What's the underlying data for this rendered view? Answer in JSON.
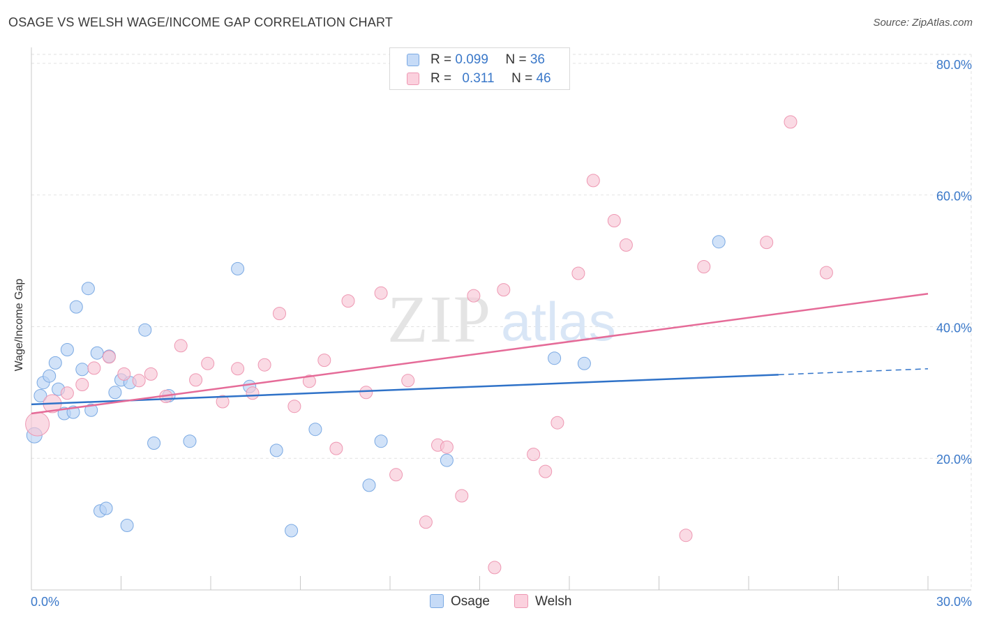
{
  "title": "OSAGE VS WELSH WAGE/INCOME GAP CORRELATION CHART",
  "source": "Source: ZipAtlas.com",
  "watermark": {
    "zip": "ZIP",
    "atlas": "atlas"
  },
  "legend_top": [
    {
      "series": "Osage",
      "r_label": "R = ",
      "r_value": "0.099",
      "n_label": "N = ",
      "n_value": "36"
    },
    {
      "series": "Welsh",
      "r_label": "R = ",
      "r_value": "0.311",
      "n_label": "N = ",
      "n_value": "46"
    }
  ],
  "colors": {
    "osage_fill": "#b8d3f5",
    "osage_stroke": "#7aa9e3",
    "osage_line": "#2f72c8",
    "welsh_fill": "#f8c6d5",
    "welsh_stroke": "#ee97b2",
    "welsh_line": "#e56b98",
    "axis_text": "#3a78c9",
    "grid": "#e2e2e2"
  },
  "chart_data": {
    "type": "scatter",
    "title": "OSAGE VS WELSH WAGE/INCOME GAP CORRELATION CHART",
    "xlabel": "",
    "ylabel": "Wage/Income Gap",
    "xlim": [
      0,
      30
    ],
    "ylim": [
      0,
      82
    ],
    "x_tick_labels": [
      "0.0%",
      "30.0%"
    ],
    "y_ticks": [
      20,
      40,
      60,
      80
    ],
    "y_tick_labels": [
      "20.0%",
      "40.0%",
      "60.0%",
      "80.0%"
    ],
    "grid": true,
    "legend": "bottom-center",
    "series": [
      {
        "name": "Osage",
        "points": [
          [
            0.1,
            23.5,
            11
          ],
          [
            0.3,
            29.5,
            9
          ],
          [
            0.4,
            31.5,
            9
          ],
          [
            0.6,
            32.5,
            9
          ],
          [
            0.8,
            34.5,
            9
          ],
          [
            0.9,
            30.5,
            9
          ],
          [
            1.1,
            26.8,
            9
          ],
          [
            1.2,
            36.5,
            9
          ],
          [
            1.4,
            27.0,
            9
          ],
          [
            1.5,
            43.0,
            9
          ],
          [
            1.7,
            33.5,
            9
          ],
          [
            1.9,
            45.8,
            9
          ],
          [
            2.0,
            27.3,
            9
          ],
          [
            2.2,
            36.0,
            9
          ],
          [
            2.3,
            12.0,
            9
          ],
          [
            2.5,
            12.4,
            9
          ],
          [
            2.6,
            35.5,
            9
          ],
          [
            2.8,
            30.0,
            9
          ],
          [
            3.0,
            31.9,
            9
          ],
          [
            3.3,
            31.5,
            9
          ],
          [
            3.2,
            9.8,
            9
          ],
          [
            3.8,
            39.5,
            9
          ],
          [
            4.1,
            22.3,
            9
          ],
          [
            4.6,
            29.5,
            9
          ],
          [
            5.3,
            22.6,
            9
          ],
          [
            6.9,
            48.8,
            9
          ],
          [
            7.3,
            30.9,
            9
          ],
          [
            8.2,
            21.2,
            9
          ],
          [
            8.7,
            9.0,
            9
          ],
          [
            9.5,
            24.4,
            9
          ],
          [
            11.3,
            15.9,
            9
          ],
          [
            11.7,
            22.6,
            9
          ],
          [
            13.9,
            19.7,
            9
          ],
          [
            17.5,
            35.2,
            9
          ],
          [
            18.5,
            34.4,
            9
          ],
          [
            23.0,
            52.9,
            9
          ]
        ]
      },
      {
        "name": "Welsh",
        "points": [
          [
            0.2,
            25.2,
            17
          ],
          [
            0.7,
            28.3,
            13
          ],
          [
            1.2,
            29.9,
            9
          ],
          [
            1.7,
            31.2,
            9
          ],
          [
            2.1,
            33.7,
            9
          ],
          [
            2.6,
            35.4,
            9
          ],
          [
            3.1,
            32.8,
            9
          ],
          [
            3.6,
            31.8,
            9
          ],
          [
            4.0,
            32.8,
            9
          ],
          [
            4.5,
            29.4,
            9
          ],
          [
            5.0,
            37.1,
            9
          ],
          [
            5.5,
            31.9,
            9
          ],
          [
            5.9,
            34.4,
            9
          ],
          [
            6.4,
            28.6,
            9
          ],
          [
            6.9,
            33.6,
            9
          ],
          [
            7.4,
            29.9,
            9
          ],
          [
            7.8,
            34.2,
            9
          ],
          [
            8.3,
            42.0,
            9
          ],
          [
            8.8,
            27.9,
            9
          ],
          [
            9.3,
            31.7,
            9
          ],
          [
            9.8,
            34.9,
            9
          ],
          [
            10.2,
            21.5,
            9
          ],
          [
            10.6,
            43.9,
            9
          ],
          [
            11.2,
            30.0,
            9
          ],
          [
            11.7,
            45.1,
            9
          ],
          [
            12.2,
            17.5,
            9
          ],
          [
            12.6,
            31.8,
            9
          ],
          [
            13.2,
            10.3,
            9
          ],
          [
            13.6,
            22.0,
            9
          ],
          [
            13.9,
            21.7,
            9
          ],
          [
            14.4,
            14.3,
            9
          ],
          [
            14.8,
            44.7,
            9
          ],
          [
            15.5,
            3.4,
            9
          ],
          [
            15.8,
            45.6,
            9
          ],
          [
            16.8,
            20.6,
            9
          ],
          [
            17.2,
            18.0,
            9
          ],
          [
            17.6,
            25.4,
            9
          ],
          [
            18.3,
            48.1,
            9
          ],
          [
            18.8,
            62.2,
            9
          ],
          [
            19.5,
            56.1,
            9
          ],
          [
            19.9,
            52.4,
            9
          ],
          [
            21.9,
            8.3,
            9
          ],
          [
            22.5,
            49.1,
            9
          ],
          [
            24.6,
            52.8,
            9
          ],
          [
            25.4,
            71.1,
            9
          ],
          [
            26.6,
            48.2,
            9
          ]
        ]
      }
    ],
    "trend_lines": [
      {
        "series": "Osage",
        "solid_from": [
          0,
          28.2
        ],
        "solid_to": [
          25.0,
          32.7
        ],
        "dashed_to": [
          30,
          33.6
        ]
      },
      {
        "series": "Welsh",
        "from": [
          0,
          26.8
        ],
        "to": [
          30,
          45.0
        ]
      }
    ]
  }
}
